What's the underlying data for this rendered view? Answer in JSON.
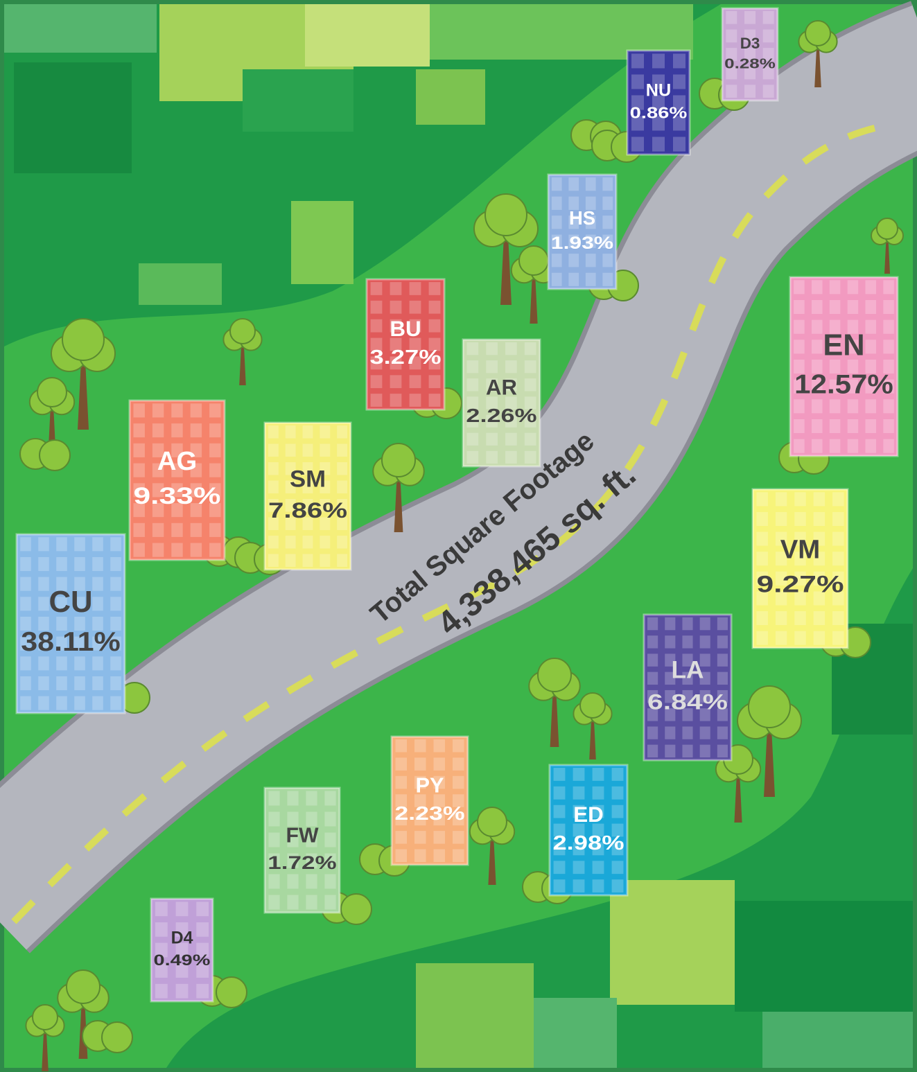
{
  "road": {
    "title": "Total Square Footage",
    "total": "4,338,465 sq. ft."
  },
  "buildings": [
    {
      "code": "D3",
      "share": "0.28%"
    },
    {
      "code": "NU",
      "share": "0.86%"
    },
    {
      "code": "HS",
      "share": "1.93%"
    },
    {
      "code": "BU",
      "share": "3.27%"
    },
    {
      "code": "AR",
      "share": "2.26%"
    },
    {
      "code": "EN",
      "share": "12.57%"
    },
    {
      "code": "AG",
      "share": "9.33%"
    },
    {
      "code": "SM",
      "share": "7.86%"
    },
    {
      "code": "CU",
      "share": "38.11%"
    },
    {
      "code": "VM",
      "share": "9.27%"
    },
    {
      "code": "LA",
      "share": "6.84%"
    },
    {
      "code": "PY",
      "share": "2.23%"
    },
    {
      "code": "ED",
      "share": "2.98%"
    },
    {
      "code": "FW",
      "share": "1.72%"
    },
    {
      "code": "D4",
      "share": "0.49%"
    }
  ]
}
